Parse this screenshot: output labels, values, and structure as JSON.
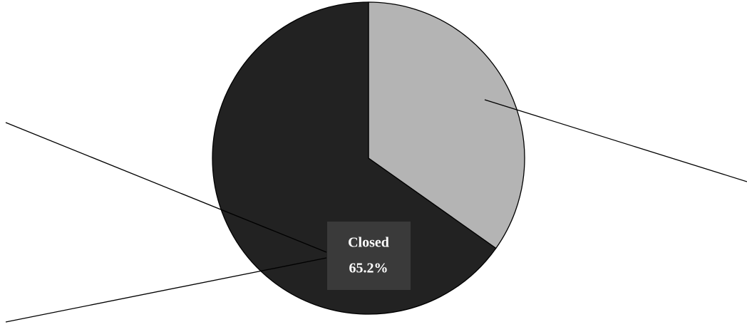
{
  "chart_data": {
    "type": "pie",
    "categories": [
      null,
      "Closed"
    ],
    "values": [
      34.8,
      65.2
    ],
    "value_labels": [
      null,
      "65.2%"
    ],
    "colors": [
      "#b4b4b4",
      "#222222"
    ]
  }
}
